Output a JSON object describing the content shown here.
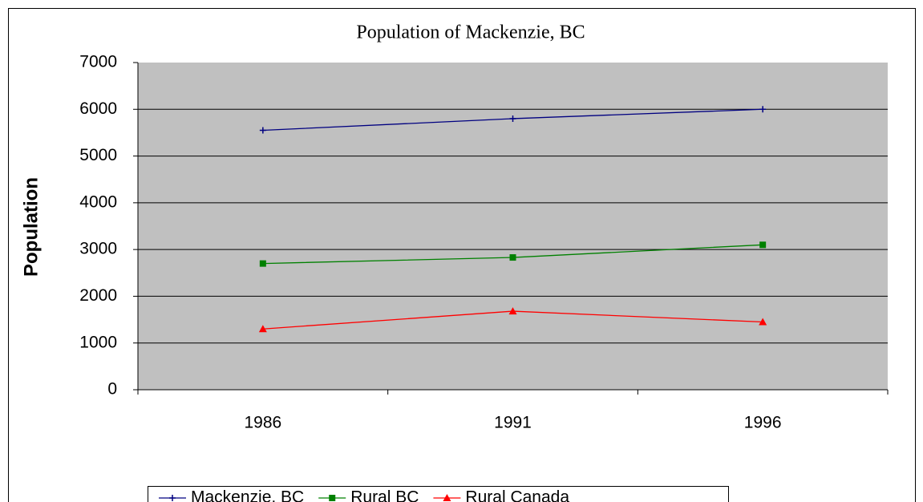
{
  "chart_data": {
    "type": "line",
    "title": "Population of Mackenzie, BC",
    "y_label": "Population",
    "categories": [
      "1986",
      "1991",
      "1996"
    ],
    "series": [
      {
        "name": "Mackenzie, BC",
        "color": "#000080",
        "marker": "plus",
        "values": [
          5550,
          5800,
          6000
        ]
      },
      {
        "name": "Rural BC",
        "color": "#008000",
        "marker": "square",
        "values": [
          2700,
          2830,
          3100
        ]
      },
      {
        "name": "Rural Canada",
        "color": "#ff0000",
        "marker": "triangle",
        "values": [
          1300,
          1680,
          1450
        ]
      }
    ],
    "ylim": [
      0,
      7000
    ],
    "yticks": [
      0,
      1000,
      2000,
      3000,
      4000,
      5000,
      6000,
      7000
    ],
    "grid": true,
    "legend": "bottom"
  }
}
